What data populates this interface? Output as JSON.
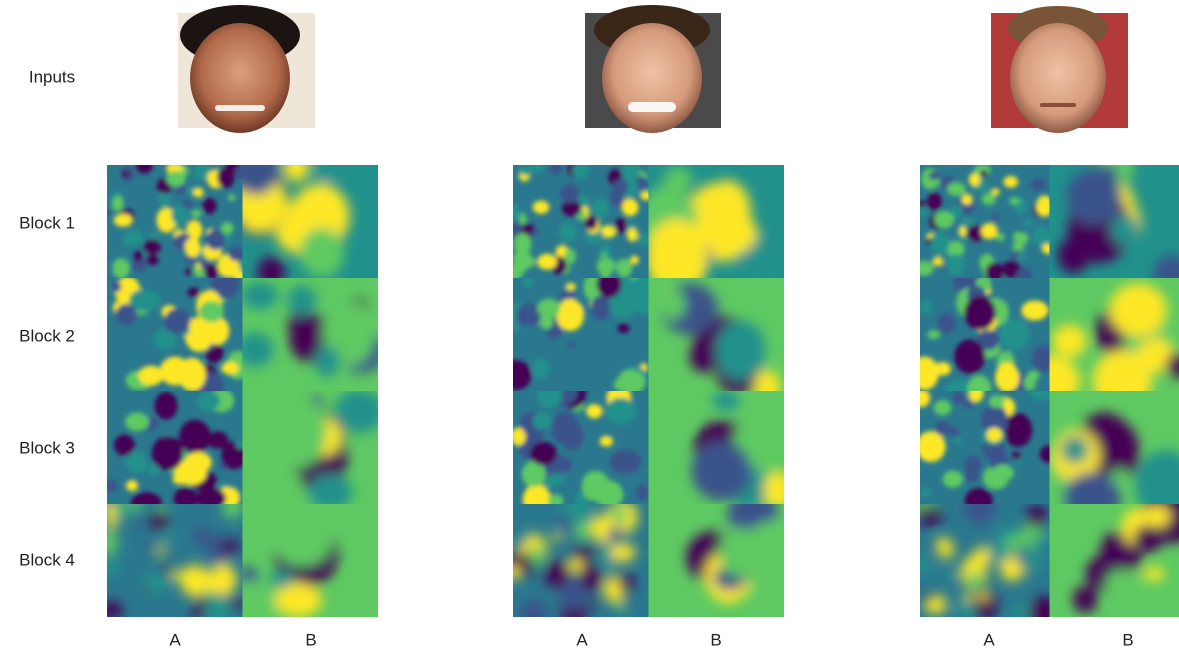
{
  "row_labels": [
    "Inputs",
    "Block 1",
    "Block 2",
    "Block 3",
    "Block 4"
  ],
  "groups": [
    {
      "columns": [
        "A",
        "B"
      ]
    },
    {
      "columns": [
        "A",
        "B"
      ]
    },
    {
      "columns": [
        "A",
        "B"
      ]
    }
  ]
}
